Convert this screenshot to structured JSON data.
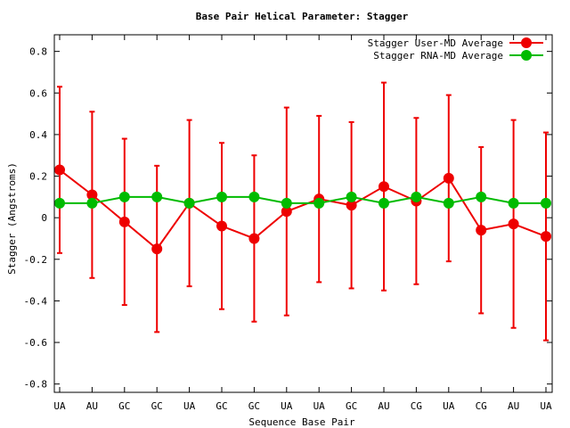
{
  "chart_data": {
    "type": "line",
    "title": "Base Pair Helical Parameter: Stagger",
    "xlabel": "Sequence Base Pair",
    "ylabel": "Stagger (Angstroms)",
    "categories": [
      "UA",
      "AU",
      "GC",
      "GC",
      "UA",
      "GC",
      "GC",
      "UA",
      "UA",
      "GC",
      "AU",
      "CG",
      "UA",
      "CG",
      "AU",
      "UA"
    ],
    "ylim": [
      -0.84,
      0.88
    ],
    "yticks": [
      -0.8,
      -0.6,
      -0.4,
      -0.2,
      0,
      0.2,
      0.4,
      0.6,
      0.8
    ],
    "ytick_labels": [
      "-0.8",
      "-0.6",
      "-0.4",
      "-0.2",
      "0",
      "0.2",
      "0.4",
      "0.6",
      "0.8"
    ],
    "legend_position": "top-right",
    "grid": false,
    "series": [
      {
        "name": "Stagger User-MD Average",
        "color": "#ee0000",
        "values": [
          0.23,
          0.11,
          -0.02,
          -0.15,
          0.07,
          -0.04,
          -0.1,
          0.03,
          0.09,
          0.06,
          0.15,
          0.08,
          0.19,
          -0.06,
          -0.03,
          -0.09
        ],
        "error_low": [
          -0.17,
          -0.29,
          -0.42,
          -0.55,
          -0.33,
          -0.44,
          -0.5,
          -0.47,
          -0.31,
          -0.34,
          -0.35,
          -0.32,
          -0.21,
          -0.46,
          -0.53,
          -0.59
        ],
        "error_high": [
          0.63,
          0.51,
          0.38,
          0.25,
          0.47,
          0.36,
          0.3,
          0.53,
          0.49,
          0.46,
          0.65,
          0.48,
          0.59,
          0.34,
          0.47,
          0.41
        ]
      },
      {
        "name": "Stagger RNA-MD Average",
        "color": "#00bb00",
        "values": [
          0.07,
          0.07,
          0.1,
          0.1,
          0.07,
          0.1,
          0.1,
          0.07,
          0.07,
          0.1,
          0.07,
          0.1,
          0.07,
          0.1,
          0.07,
          0.07
        ]
      }
    ]
  }
}
